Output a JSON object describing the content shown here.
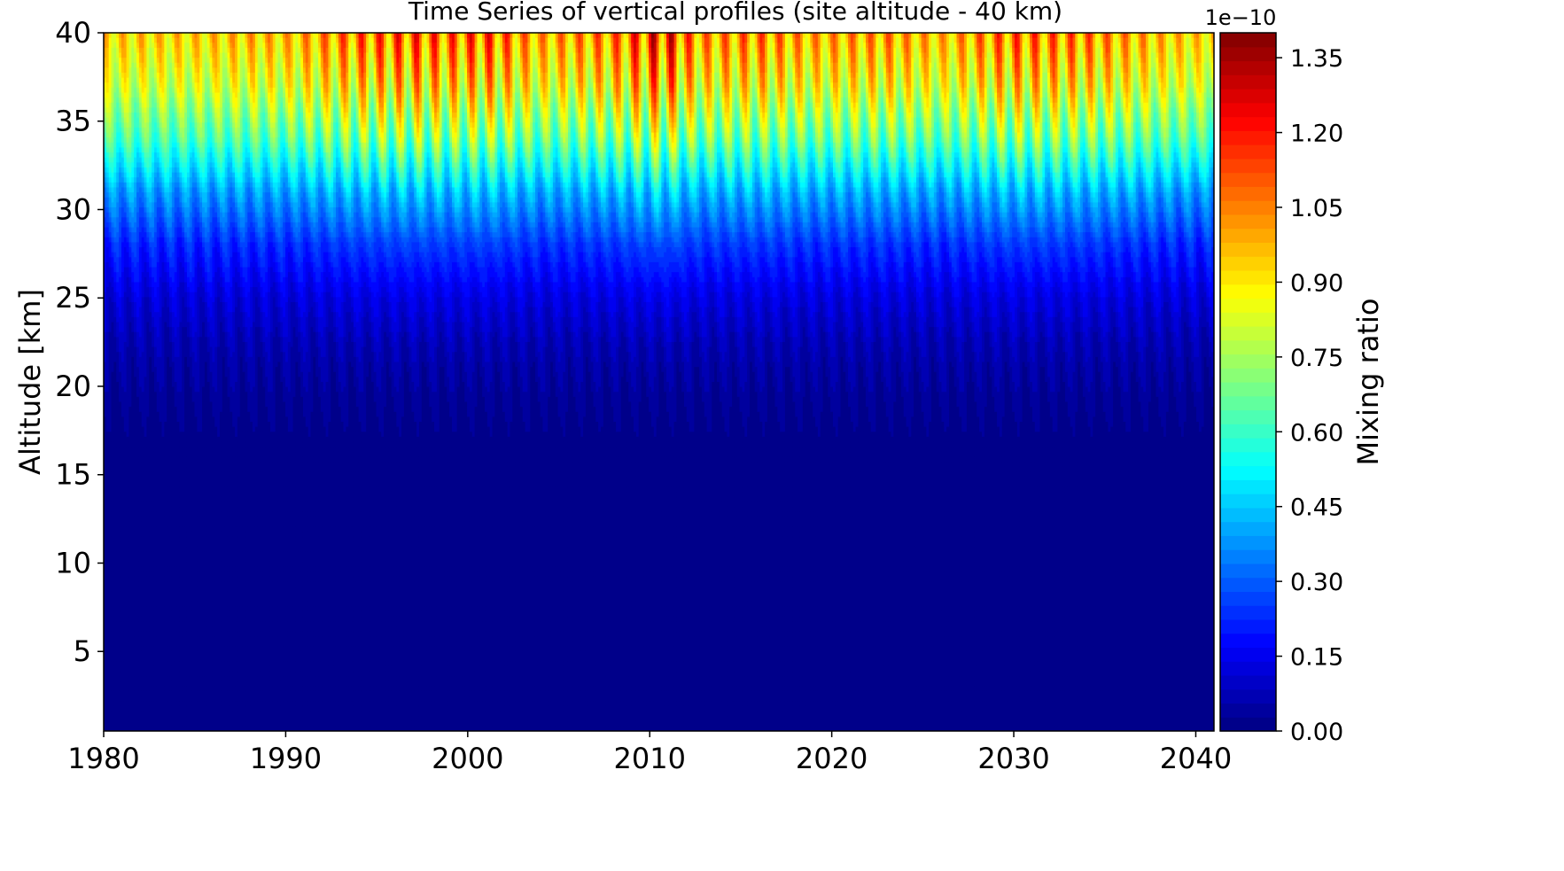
{
  "chart_data": {
    "type": "heatmap",
    "title": "Time Series of vertical profiles (site altitude - 40 km)",
    "xlabel": "",
    "ylabel": "Altitude [km]",
    "xlim": [
      1980,
      2041
    ],
    "ylim": [
      0.5,
      40
    ],
    "x_ticks": [
      "1980",
      "1990",
      "2000",
      "2010",
      "2020",
      "2030",
      "2040"
    ],
    "x_tick_values": [
      1980,
      1990,
      2000,
      2010,
      2020,
      2030,
      2040
    ],
    "y_ticks": [
      "5",
      "10",
      "15",
      "20",
      "25",
      "30",
      "35",
      "40"
    ],
    "y_tick_values": [
      5,
      10,
      15,
      20,
      25,
      30,
      35,
      40
    ],
    "colormap": "jet",
    "colorbar": {
      "label": "Mixing ratio",
      "offset_text": "1e−10",
      "range": [
        0.0,
        1.4
      ],
      "ticks": [
        "0.00",
        "0.15",
        "0.30",
        "0.45",
        "0.60",
        "0.75",
        "0.90",
        "1.05",
        "1.20",
        "1.35"
      ],
      "tick_values": [
        0.0,
        0.15,
        0.3,
        0.45,
        0.6,
        0.75,
        0.9,
        1.05,
        1.2,
        1.35
      ],
      "levels": 50
    },
    "annual_cycle_period_years": 1.0,
    "top_peak_mixing_ratio_by_year": [
      {
        "year": 1982.0,
        "value": 0.95
      },
      {
        "year": 1985.0,
        "value": 0.95
      },
      {
        "year": 1988.0,
        "value": 1.0
      },
      {
        "year": 1990.0,
        "value": 1.0
      },
      {
        "year": 1993.9,
        "value": 1.18
      },
      {
        "year": 1997.0,
        "value": 1.25
      },
      {
        "year": 1999.0,
        "value": 1.2
      },
      {
        "year": 2001.0,
        "value": 1.25
      },
      {
        "year": 2004.0,
        "value": 1.05
      },
      {
        "year": 2008.0,
        "value": 1.15
      },
      {
        "year": 2010.8,
        "value": 1.4
      },
      {
        "year": 2012.7,
        "value": 1.1
      },
      {
        "year": 2016.0,
        "value": 1.15
      },
      {
        "year": 2019.0,
        "value": 1.05
      },
      {
        "year": 2023.0,
        "value": 1.1
      },
      {
        "year": 2026.0,
        "value": 1.0
      },
      {
        "year": 2029.8,
        "value": 1.2
      },
      {
        "year": 2033.7,
        "value": 1.15
      },
      {
        "year": 2038.0,
        "value": 1.0
      },
      {
        "year": 2040.0,
        "value": 0.95
      }
    ],
    "profile_mixing_ratio_by_altitude": [
      {
        "altitude": 0.5,
        "value": 0.0
      },
      {
        "altitude": 10,
        "value": 0.0
      },
      {
        "altitude": 18,
        "value": 0.02
      },
      {
        "altitude": 22,
        "value": 0.06
      },
      {
        "altitude": 25,
        "value": 0.12
      },
      {
        "altitude": 28,
        "value": 0.22
      },
      {
        "altitude": 31,
        "value": 0.38
      },
      {
        "altitude": 34,
        "value": 0.62
      },
      {
        "altitude": 37,
        "value": 0.8
      },
      {
        "altitude": 40,
        "value": 0.92
      }
    ]
  }
}
